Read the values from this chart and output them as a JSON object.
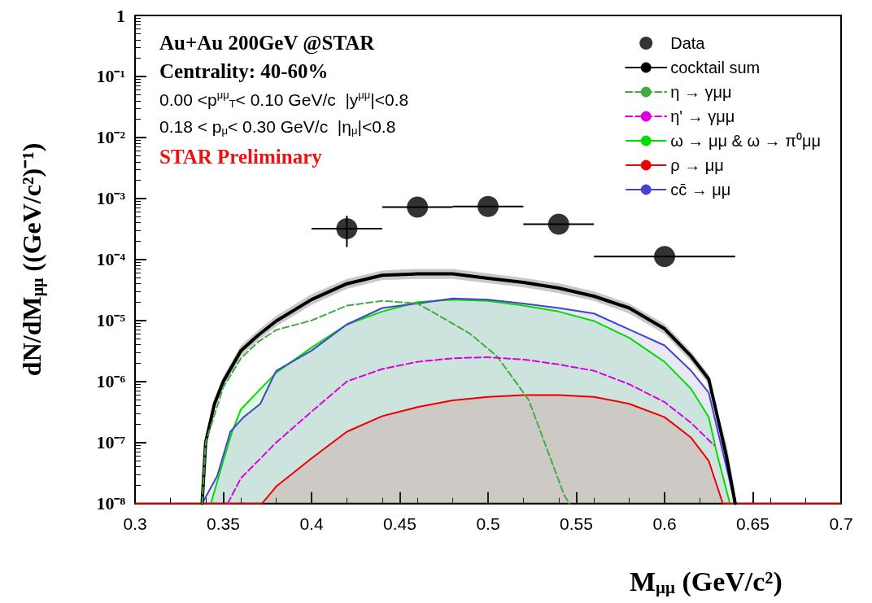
{
  "chart_data": {
    "type": "line",
    "xlabel": "M$_{μμ}$ (GeV/c²)",
    "ylabel": "dN/dM$_{μμ}$ ((GeV/c²)⁻¹)",
    "annotations": [
      "Au+Au 200GeV @STAR",
      "Centrality: 40-60%",
      "0.00 <p$^{μμ}$$_{T}$< 0.10 GeV/c  |y$^{μμ}$|<0.8",
      "0.18 < p$_{μ}$< 0.30 GeV/c  |η$_{μ}$|<0.8",
      "STAR Preliminary"
    ],
    "log": "y",
    "grid": false,
    "legend": "top right",
    "line_style": "solid",
    "xlim": [
      0.3,
      0.7
    ],
    "xticks": [
      0.3,
      0.35,
      0.4,
      0.45,
      0.5,
      0.55,
      0.6,
      0.65,
      0.7
    ],
    "ylim": [
      1e-08,
      1
    ],
    "yticks": [
      {
        "value": 1e-08,
        "label": "10⁻⁸"
      },
      {
        "value": 1e-07,
        "label": "10⁻⁷"
      },
      {
        "value": 1e-06,
        "label": "10⁻⁶"
      },
      {
        "value": 1e-05,
        "label": "10⁻⁵"
      },
      {
        "value": 0.0001,
        "label": "10⁻⁴"
      },
      {
        "value": 0.001,
        "label": "10⁻³"
      },
      {
        "value": 0.01,
        "label": "10⁻²"
      },
      {
        "value": 0.1,
        "label": "10⁻¹"
      },
      {
        "value": 1,
        "label": "1"
      }
    ],
    "series": [
      {
        "name": "Data",
        "type": "scatter",
        "marker": "circle",
        "color": "#000000",
        "x": [
          0.42,
          0.46,
          0.5,
          0.54,
          0.6
        ],
        "values": [
          0.00032,
          0.00072,
          0.00074,
          0.00038,
          0.000112
        ],
        "errors": [
          [
            0.00016,
            0.00052
          ],
          null,
          null,
          null,
          null
        ],
        "xerrors": [
          0.02,
          0.02,
          0.02,
          0.02,
          0.04
        ]
      },
      {
        "name": "cocktail sum",
        "color": "#000000",
        "x": [
          0.338,
          0.34,
          0.345,
          0.35,
          0.36,
          0.37,
          0.38,
          0.4,
          0.42,
          0.44,
          0.46,
          0.48,
          0.5,
          0.52,
          0.54,
          0.56,
          0.58,
          0.6,
          0.615,
          0.625,
          0.63,
          0.635,
          0.64
        ],
        "values": [
          1e-08,
          1e-07,
          4.3e-07,
          1e-06,
          3.2e-06,
          5.8e-06,
          9.8e-06,
          2.2e-05,
          4e-05,
          5.5e-05,
          5.8e-05,
          5.8e-05,
          4.9e-05,
          4.2e-05,
          3.4e-05,
          2.5e-05,
          1.6e-05,
          7.3e-06,
          2.6e-06,
          1.1e-06,
          2.6e-07,
          6e-08,
          1e-08
        ],
        "lower": [
          1e-08,
          8e-08,
          3.5e-07,
          8e-07,
          2.6e-06,
          4.8e-06,
          8e-06,
          1.8e-05,
          3.3e-05,
          4.6e-05,
          4.8e-05,
          4.8e-05,
          4.1e-05,
          3.5e-05,
          2.8e-05,
          2.1e-05,
          1.3e-05,
          6e-06,
          2.1e-06,
          9e-07,
          2.1e-07,
          5e-08,
          1e-08
        ],
        "upper": [
          1.2e-08,
          1.2e-07,
          5.2e-07,
          1.2e-06,
          3.9e-06,
          7e-06,
          1.2e-05,
          2.7e-05,
          4.8e-05,
          6.6e-05,
          7e-05,
          7e-05,
          5.9e-05,
          5e-05,
          4.1e-05,
          3e-05,
          1.9e-05,
          8.8e-06,
          3.1e-06,
          1.3e-06,
          3.1e-07,
          1e-07,
          1.5e-08
        ]
      },
      {
        "name": "η → γμμ",
        "type": "line",
        "line_style": "dashed",
        "color": "#44aa44",
        "x": [
          0.338,
          0.34,
          0.35,
          0.36,
          0.37,
          0.38,
          0.4,
          0.42,
          0.44,
          0.46,
          0.477,
          0.49,
          0.505,
          0.523,
          0.532,
          0.543,
          0.546
        ],
        "values": [
          1e-08,
          1e-07,
          8e-07,
          2.4e-06,
          4.5e-06,
          7e-06,
          1e-05,
          1.75e-05,
          2.1e-05,
          1.9e-05,
          1e-05,
          6e-06,
          2.6e-06,
          5e-07,
          1e-07,
          1.4e-08,
          1e-08
        ]
      },
      {
        "name": "η' → γμμ",
        "type": "line",
        "line_style": "dashed",
        "color": "#dd00dd",
        "x": [
          0.3525,
          0.36,
          0.38,
          0.4,
          0.42,
          0.44,
          0.46,
          0.48,
          0.5,
          0.52,
          0.54,
          0.56,
          0.58,
          0.6,
          0.615,
          0.628
        ],
        "values": [
          1e-08,
          2.6e-08,
          1e-07,
          3.2e-07,
          1e-06,
          1.6e-06,
          2.1e-06,
          2.4e-06,
          2.5e-06,
          2.3e-06,
          1.9e-06,
          1.5e-06,
          9e-07,
          4.6e-07,
          2.1e-07,
          9e-08
        ]
      },
      {
        "name": "ω → μμ & ω → π⁰μμ",
        "type": "area",
        "color": "#00dd00",
        "x": [
          0.343,
          0.35,
          0.355,
          0.36,
          0.37,
          0.38,
          0.4,
          0.42,
          0.44,
          0.46,
          0.48,
          0.5,
          0.52,
          0.54,
          0.56,
          0.58,
          0.6,
          0.615,
          0.625,
          0.63,
          0.637
        ],
        "values": [
          1e-08,
          5e-08,
          1.5e-07,
          3.5e-07,
          7e-07,
          1.4e-06,
          3.6e-06,
          8.6e-06,
          1.4e-05,
          2e-05,
          2.2e-05,
          2.1e-05,
          1.75e-05,
          1.4e-05,
          9.8e-06,
          5.2e-06,
          2.1e-06,
          7.6e-07,
          2.6e-07,
          6e-08,
          1e-08
        ]
      },
      {
        "name": "ρ → μμ",
        "type": "area",
        "color": "#ee0000",
        "x": [
          0.3,
          0.372,
          0.38,
          0.4,
          0.42,
          0.44,
          0.46,
          0.48,
          0.5,
          0.52,
          0.54,
          0.56,
          0.58,
          0.6,
          0.615,
          0.625,
          0.633,
          0.7
        ],
        "values": [
          1e-08,
          1e-08,
          1.9e-08,
          5.5e-08,
          1.5e-07,
          2.7e-07,
          3.8e-07,
          4.9e-07,
          5.6e-07,
          6e-07,
          6e-07,
          5.6e-07,
          4.3e-07,
          2.6e-07,
          1.2e-07,
          5e-08,
          1e-08,
          1e-08
        ]
      },
      {
        "name": "cc̄ → μμ",
        "type": "area",
        "color": "#4444cc",
        "x": [
          0.338,
          0.3465,
          0.354,
          0.3615,
          0.371,
          0.377,
          0.38,
          0.4,
          0.42,
          0.44,
          0.46,
          0.48,
          0.5,
          0.52,
          0.54,
          0.56,
          0.58,
          0.6,
          0.615,
          0.625,
          0.63,
          0.64
        ],
        "values": [
          1e-08,
          2.8e-08,
          1.5e-07,
          2.6e-07,
          4.3e-07,
          1e-06,
          1.5e-06,
          3.2e-06,
          8.6e-06,
          1.6e-05,
          1.9e-05,
          2.3e-05,
          2.2e-05,
          1.9e-05,
          1.6e-05,
          1.3e-05,
          7.1e-06,
          3.9e-06,
          1.5e-06,
          6.6e-07,
          1.6e-07,
          1e-08
        ]
      }
    ]
  }
}
